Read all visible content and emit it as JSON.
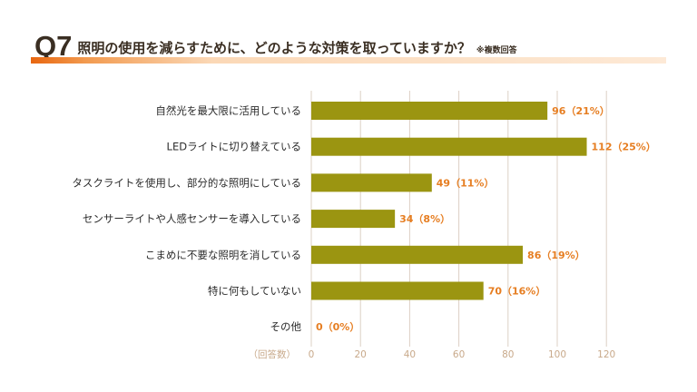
{
  "header": {
    "number": "Q7",
    "question": "照明の使用を減らすために、どのような対策を取っていますか？",
    "note": "※複数回答"
  },
  "colors": {
    "bar": "#9b9511",
    "value_label": "#e67e22",
    "accent": "#e8660f",
    "grid": "#dcd0c4",
    "tick": "#c8a98a"
  },
  "chart_data": {
    "type": "bar",
    "orientation": "horizontal",
    "categories": [
      "自然光を最大限に活用している",
      "LEDライトに切り替えている",
      "タスクライトを使用し、部分的な照明にしている",
      "センサーライトや人感センサーを導入している",
      "こまめに不要な照明を消している",
      "特に何もしていない",
      "その他"
    ],
    "values": [
      96,
      112,
      49,
      34,
      86,
      70,
      0
    ],
    "value_labels": [
      "96（21%）",
      "112（25%）",
      "49（11%）",
      "34（8%）",
      "86（19%）",
      "70（16%）",
      "0（0%）"
    ],
    "xlim": [
      0,
      120
    ],
    "xticks": [
      "0",
      "20",
      "40",
      "60",
      "80",
      "100",
      "120"
    ],
    "xlabel": "（回答数）",
    "grid": true
  }
}
